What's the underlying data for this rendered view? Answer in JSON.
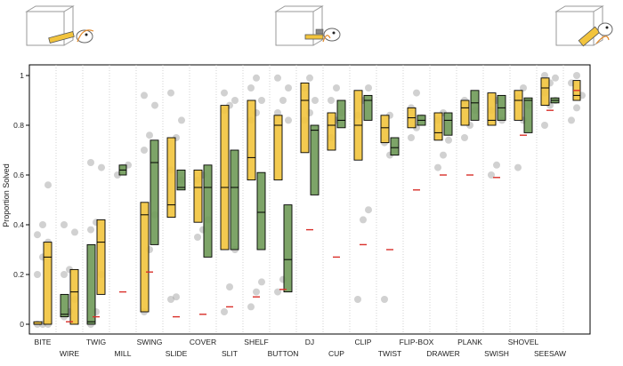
{
  "chart_data": {
    "type": "box",
    "ylabel": "Proportion Solved",
    "ylim": [
      0,
      1
    ],
    "yticks": [
      "0",
      "0.2",
      "0.4",
      "0.6",
      "0.8",
      "1"
    ],
    "grid": "vertical dotted separators between categories",
    "colors": {
      "yellow": "#f2c43d",
      "green": "#6f9a58",
      "points": "#9a9a9a",
      "chance": "#d9302a"
    },
    "categories": [
      {
        "name": "BITE",
        "boxes": [
          {
            "color": "yellow",
            "q1": 0.0,
            "med": 0.0,
            "q3": 0.01
          },
          {
            "color": "yellow",
            "q1": 0.0,
            "med": 0.27,
            "q3": 0.33
          }
        ],
        "chance": null,
        "points": [
          0.0,
          0.0,
          0.0,
          0.2,
          0.27,
          0.33,
          0.36,
          0.4,
          0.56
        ]
      },
      {
        "name": "WIRE",
        "boxes": [
          {
            "color": "green",
            "q1": 0.03,
            "med": 0.04,
            "q3": 0.12
          },
          {
            "color": "yellow",
            "q1": 0.0,
            "med": 0.13,
            "q3": 0.22
          }
        ],
        "chance": 0.01,
        "points": [
          0.03,
          0.05,
          0.1,
          0.2,
          0.22,
          0.37,
          0.4
        ]
      },
      {
        "name": "TWIG",
        "boxes": [
          {
            "color": "green",
            "q1": 0.0,
            "med": 0.01,
            "q3": 0.32
          },
          {
            "color": "yellow",
            "q1": 0.12,
            "med": 0.33,
            "q3": 0.42
          }
        ],
        "chance": 0.03,
        "points": [
          0.0,
          0.05,
          0.2,
          0.38,
          0.41,
          0.63,
          0.65
        ]
      },
      {
        "name": "MILL",
        "boxes": [
          {
            "color": "green",
            "q1": 0.6,
            "med": 0.62,
            "q3": 0.64
          }
        ],
        "chance": 0.13,
        "points": [
          0.6,
          0.63,
          0.64
        ]
      },
      {
        "name": "SWING",
        "boxes": [
          {
            "color": "yellow",
            "q1": 0.05,
            "med": 0.44,
            "q3": 0.49
          },
          {
            "color": "green",
            "q1": 0.32,
            "med": 0.65,
            "q3": 0.74
          }
        ],
        "chance": 0.21,
        "points": [
          0.05,
          0.3,
          0.44,
          0.7,
          0.76,
          0.88,
          0.92
        ]
      },
      {
        "name": "SLIDE",
        "boxes": [
          {
            "color": "yellow",
            "q1": 0.43,
            "med": 0.48,
            "q3": 0.75
          },
          {
            "color": "green",
            "q1": 0.54,
            "med": 0.55,
            "q3": 0.62
          }
        ],
        "chance": 0.03,
        "points": [
          0.1,
          0.11,
          0.58,
          0.62,
          0.75,
          0.82,
          0.93
        ]
      },
      {
        "name": "COVER",
        "boxes": [
          {
            "color": "yellow",
            "q1": 0.41,
            "med": 0.55,
            "q3": 0.62
          },
          {
            "color": "green",
            "q1": 0.27,
            "med": 0.55,
            "q3": 0.64
          }
        ],
        "chance": 0.04,
        "points": [
          0.35,
          0.38,
          0.42,
          0.58,
          0.6
        ]
      },
      {
        "name": "SLIT",
        "boxes": [
          {
            "color": "yellow",
            "q1": 0.3,
            "med": 0.55,
            "q3": 0.88
          },
          {
            "color": "green",
            "q1": 0.3,
            "med": 0.55,
            "q3": 0.7
          }
        ],
        "chance": 0.07,
        "points": [
          0.05,
          0.15,
          0.3,
          0.86,
          0.88,
          0.9,
          0.93
        ]
      },
      {
        "name": "SHELF",
        "boxes": [
          {
            "color": "yellow",
            "q1": 0.58,
            "med": 0.67,
            "q3": 0.9
          },
          {
            "color": "green",
            "q1": 0.3,
            "med": 0.45,
            "q3": 0.61
          }
        ],
        "chance": 0.11,
        "points": [
          0.07,
          0.13,
          0.17,
          0.82,
          0.85,
          0.9,
          0.95,
          0.99
        ]
      },
      {
        "name": "BUTTON",
        "boxes": [
          {
            "color": "yellow",
            "q1": 0.58,
            "med": 0.8,
            "q3": 0.84
          },
          {
            "color": "green",
            "q1": 0.13,
            "med": 0.26,
            "q3": 0.48
          }
        ],
        "chance": 0.14,
        "points": [
          0.13,
          0.18,
          0.82,
          0.85,
          0.9,
          0.95,
          0.99
        ]
      },
      {
        "name": "DJ",
        "boxes": [
          {
            "color": "yellow",
            "q1": 0.69,
            "med": 0.9,
            "q3": 0.97
          },
          {
            "color": "green",
            "q1": 0.52,
            "med": 0.78,
            "q3": 0.8
          }
        ],
        "chance": 0.38,
        "points": [
          0.82,
          0.85,
          0.9,
          0.95,
          0.99
        ]
      },
      {
        "name": "CUP",
        "boxes": [
          {
            "color": "yellow",
            "q1": 0.7,
            "med": 0.8,
            "q3": 0.85
          },
          {
            "color": "green",
            "q1": 0.79,
            "med": 0.82,
            "q3": 0.9
          }
        ],
        "chance": 0.27,
        "points": [
          0.75,
          0.82,
          0.85,
          0.9,
          0.95
        ]
      },
      {
        "name": "CLIP",
        "boxes": [
          {
            "color": "yellow",
            "q1": 0.66,
            "med": 0.8,
            "q3": 0.94
          },
          {
            "color": "green",
            "q1": 0.82,
            "med": 0.9,
            "q3": 0.92
          }
        ],
        "chance": 0.32,
        "points": [
          0.1,
          0.42,
          0.46,
          0.84,
          0.9,
          0.95
        ]
      },
      {
        "name": "TWIST",
        "boxes": [
          {
            "color": "yellow",
            "q1": 0.73,
            "med": 0.79,
            "q3": 0.84
          },
          {
            "color": "green",
            "q1": 0.68,
            "med": 0.71,
            "q3": 0.75
          }
        ],
        "chance": 0.3,
        "points": [
          0.1,
          0.68,
          0.7,
          0.73,
          0.84
        ]
      },
      {
        "name": "FLIP-BOX",
        "boxes": [
          {
            "color": "yellow",
            "q1": 0.79,
            "med": 0.83,
            "q3": 0.87
          },
          {
            "color": "green",
            "q1": 0.8,
            "med": 0.82,
            "q3": 0.84
          }
        ],
        "chance": 0.54,
        "points": [
          0.75,
          0.79,
          0.83,
          0.87,
          0.93
        ]
      },
      {
        "name": "DRAWER",
        "boxes": [
          {
            "color": "yellow",
            "q1": 0.74,
            "med": 0.77,
            "q3": 0.85
          },
          {
            "color": "green",
            "q1": 0.76,
            "med": 0.82,
            "q3": 0.85
          }
        ],
        "chance": 0.6,
        "points": [
          0.63,
          0.68,
          0.74,
          0.82,
          0.85
        ]
      },
      {
        "name": "PLANK",
        "boxes": [
          {
            "color": "yellow",
            "q1": 0.8,
            "med": 0.87,
            "q3": 0.9
          },
          {
            "color": "green",
            "q1": 0.82,
            "med": 0.89,
            "q3": 0.94
          }
        ],
        "chance": 0.6,
        "points": [
          0.75,
          0.8,
          0.86,
          0.9
        ]
      },
      {
        "name": "SWISH",
        "boxes": [
          {
            "color": "yellow",
            "q1": 0.8,
            "med": 0.82,
            "q3": 0.93
          },
          {
            "color": "green",
            "q1": 0.82,
            "med": 0.87,
            "q3": 0.92
          }
        ],
        "chance": 0.59,
        "points": [
          0.6,
          0.64,
          0.82,
          0.86,
          0.9
        ]
      },
      {
        "name": "SHOVEL",
        "boxes": [
          {
            "color": "yellow",
            "q1": 0.82,
            "med": 0.9,
            "q3": 0.94
          },
          {
            "color": "green",
            "q1": 0.77,
            "med": 0.9,
            "q3": 0.91
          }
        ],
        "chance": 0.76,
        "points": [
          0.63,
          0.82,
          0.88,
          0.91,
          0.95
        ]
      },
      {
        "name": "SEESAW",
        "boxes": [
          {
            "color": "yellow",
            "q1": 0.88,
            "med": 0.95,
            "q3": 0.99
          },
          {
            "color": "green",
            "q1": 0.89,
            "med": 0.9,
            "q3": 0.91
          }
        ],
        "chance": 0.86,
        "points": [
          0.8,
          0.88,
          0.9,
          0.93,
          0.97,
          0.99,
          1.0
        ]
      },
      {
        "name": "",
        "boxes": [
          {
            "color": "yellow",
            "q1": 0.9,
            "med": 0.92,
            "q3": 0.98
          }
        ],
        "chance": 0.94,
        "points": [
          0.82,
          0.87,
          0.92,
          0.97,
          1.0
        ]
      }
    ]
  },
  "illustrations": [
    {
      "name": "task-illustration-left"
    },
    {
      "name": "task-illustration-middle"
    },
    {
      "name": "task-illustration-right"
    }
  ]
}
